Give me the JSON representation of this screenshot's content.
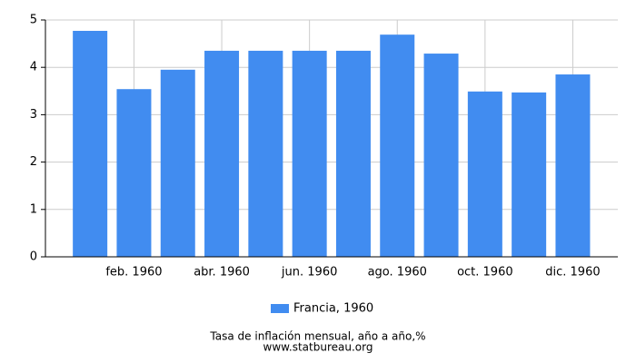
{
  "chart_data": {
    "type": "bar",
    "categories": [
      null,
      "feb. 1960",
      null,
      "abr. 1960",
      null,
      "jun. 1960",
      null,
      "ago. 1960",
      null,
      "oct. 1960",
      null,
      "dic. 1960"
    ],
    "series": [
      {
        "name": "Francia, 1960",
        "color": "#418cf0",
        "values": [
          4.77,
          3.54,
          3.95,
          4.35,
          4.35,
          4.35,
          4.35,
          4.69,
          4.29,
          3.49,
          3.47,
          3.85
        ]
      }
    ],
    "ylim": [
      0,
      5
    ],
    "yticks": [
      0,
      1,
      2,
      3,
      4,
      5
    ],
    "grid": true,
    "legend": "bottom",
    "footer": [
      "Tasa de inflación mensual, año a año,%",
      "www.statbureau.org"
    ]
  }
}
